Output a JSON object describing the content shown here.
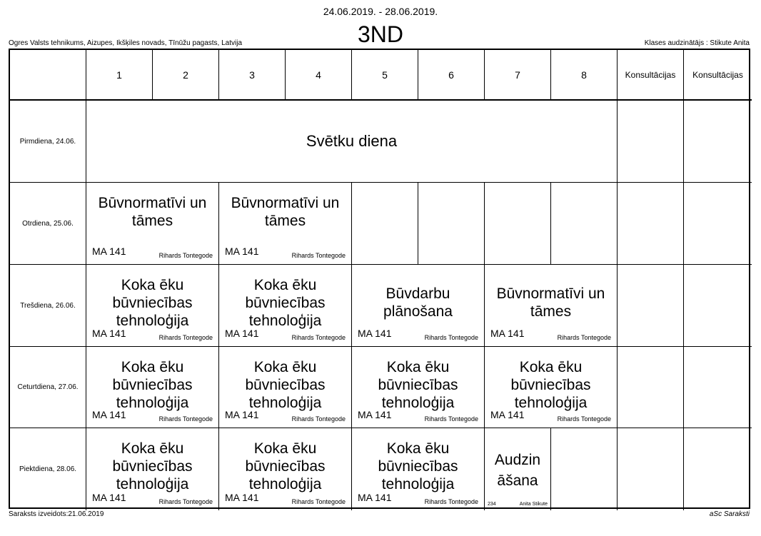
{
  "header": {
    "date_range": "24.06.2019. - 28.06.2019.",
    "class_name": "3ND",
    "school": "Ogres Valsts tehnikums, Aizupes, Ikšķiles novads, Tīnūžu pagasts, Latvija",
    "class_teacher": "Klases audzinātājs : Stikute Anita"
  },
  "columns": [
    "1",
    "2",
    "3",
    "4",
    "5",
    "6",
    "7",
    "8",
    "Konsultācijas",
    "Konsultācijas"
  ],
  "days": [
    "Pirmdiena, 24.06.",
    "Otrdiena, 25.06.",
    "Trešdiena, 26.06.",
    "Ceturtdiena, 27.06.",
    "Piektdiena, 28.06."
  ],
  "holiday": "Svētku diena",
  "lessons": {
    "tue_1": {
      "subject": "Būvnormatīvi un tāmes",
      "room": "MA 141",
      "teacher": "Rihards Tontegode"
    },
    "tue_2": {
      "subject": "Būvnormatīvi un tāmes",
      "room": "MA 141",
      "teacher": "Rihards Tontegode"
    },
    "wed_1": {
      "subject": "Koka ēku būvniecības tehnoloģija",
      "room": "MA 141",
      "teacher": "Rihards Tontegode"
    },
    "wed_2": {
      "subject": "Koka ēku būvniecības tehnoloģija",
      "room": "MA 141",
      "teacher": "Rihards Tontegode"
    },
    "wed_3": {
      "subject": "Būvdarbu plānošana",
      "room": "MA 141",
      "teacher": "Rihards Tontegode"
    },
    "wed_4": {
      "subject": "Būvnormatīvi un tāmes",
      "room": "MA 141",
      "teacher": "Rihards Tontegode"
    },
    "thu_1": {
      "subject": "Koka ēku būvniecības tehnoloģija",
      "room": "MA 141",
      "teacher": "Rihards Tontegode"
    },
    "thu_2": {
      "subject": "Koka ēku būvniecības tehnoloģija",
      "room": "MA 141",
      "teacher": "Rihards Tontegode"
    },
    "thu_3": {
      "subject": "Koka ēku būvniecības tehnoloģija",
      "room": "MA 141",
      "teacher": "Rihards Tontegode"
    },
    "thu_4": {
      "subject": "Koka ēku būvniecības tehnoloģija",
      "room": "MA 141",
      "teacher": "Rihards Tontegode"
    },
    "fri_1": {
      "subject": "Koka ēku būvniecības tehnoloģija",
      "room": "MA 141",
      "teacher": "Rihards Tontegode"
    },
    "fri_2": {
      "subject": "Koka ēku būvniecības tehnoloģija",
      "room": "MA 141",
      "teacher": "Rihards Tontegode"
    },
    "fri_3": {
      "subject": "Koka ēku būvniecības tehnoloģija",
      "room": "MA 141",
      "teacher": "Rihards Tontegode"
    },
    "fri_4": {
      "subject": "Audzin āšana",
      "room": "234",
      "teacher": "Anita Stikute"
    }
  },
  "footer": {
    "created": "Saraksts izveidots:21.06.2019",
    "brand": "aSc Saraksti"
  }
}
